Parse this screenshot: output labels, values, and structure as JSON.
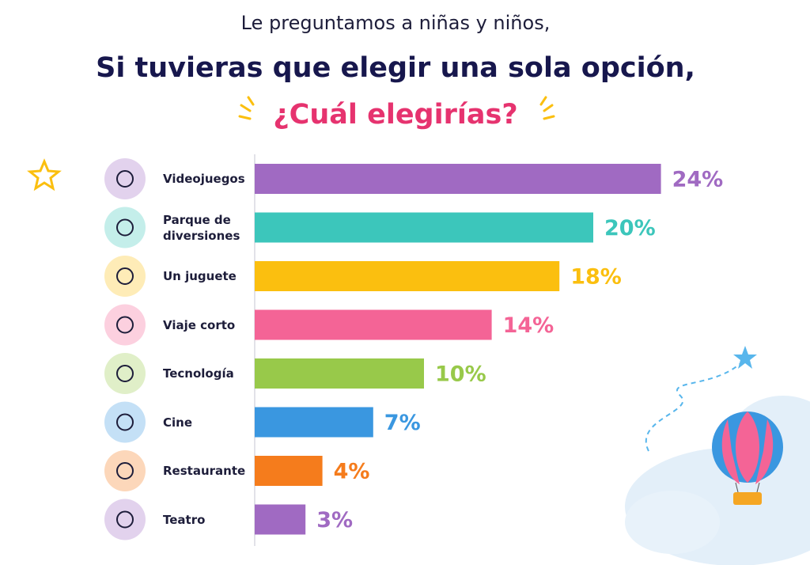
{
  "chart_data": {
    "type": "bar",
    "orientation": "horizontal",
    "title": "Le preguntamos a niñas y niños,",
    "subtitle": "Si tuvieras que elegir una sola opción,",
    "question": "¿Cuál elegirías?",
    "categories": [
      "Videojuegos",
      "Parque de diversiones",
      "Un juguete",
      "Viaje corto",
      "Tecnología",
      "Cine",
      "Restaurante",
      "Teatro"
    ],
    "values": [
      24,
      20,
      18,
      14,
      10,
      7,
      4,
      3
    ],
    "value_labels": [
      "24%",
      "20%",
      "18%",
      "14%",
      "10%",
      "7%",
      "4%",
      "3%"
    ],
    "colors": [
      "#a06ac2",
      "#3cc6bb",
      "#fbbf0f",
      "#f46496",
      "#98c94a",
      "#3a97e0",
      "#f57c1c",
      "#a06ac2"
    ]
  }
}
